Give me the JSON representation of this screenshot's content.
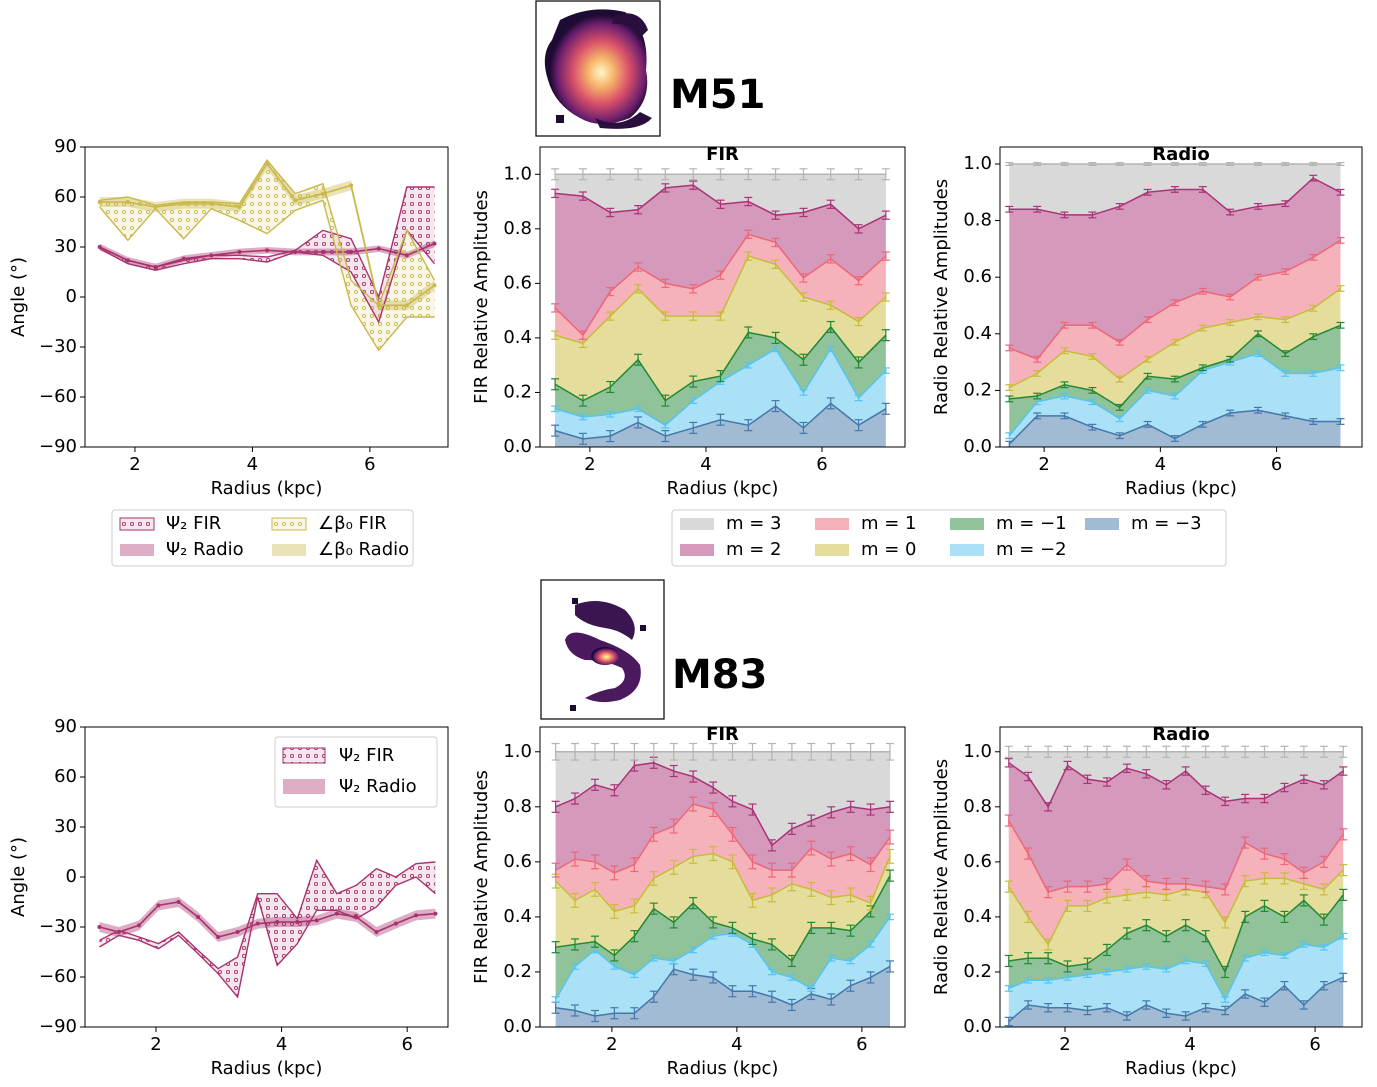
{
  "galaxies": [
    "M51",
    "M83"
  ],
  "chart_data": [
    {
      "type": "line",
      "xlabel": "Radius (kpc)",
      "ylabel": "Angle (°)",
      "legend": "below",
      "xlim": [
        1.15,
        7.33
      ],
      "ylim": [
        -90,
        90
      ],
      "xticks": [
        2,
        4,
        6
      ],
      "yticks": [
        {
          "value": -90,
          "label": "−90"
        },
        {
          "value": -60,
          "label": "−60"
        },
        {
          "value": -30,
          "label": "−30"
        },
        0,
        30,
        60,
        90
      ],
      "x": [
        1.4,
        1.88,
        2.35,
        2.83,
        3.3,
        3.78,
        4.25,
        4.73,
        5.2,
        5.68,
        6.15,
        6.63,
        7.1
      ],
      "series": [
        {
          "name": "Ψ₂ FIR",
          "color": "#a8326e",
          "lower": [
            29,
            20,
            16,
            20,
            23,
            23,
            21,
            27,
            25,
            15,
            -15,
            40,
            20
          ],
          "upper": [
            30,
            22,
            18,
            22,
            25,
            25,
            24,
            28,
            40,
            35,
            0,
            66,
            66
          ]
        },
        {
          "name": "Ψ₂ Radio",
          "color": "#a8326e",
          "values": [
            30,
            22,
            18,
            23,
            25,
            27,
            28,
            27,
            27,
            27,
            29,
            25,
            32
          ],
          "error": 2
        },
        {
          "name": "∠β₀ FIR",
          "color": "#c9b84a",
          "lower": [
            54,
            34,
            53,
            35,
            53,
            46,
            38,
            52,
            58,
            -5,
            -32,
            -12,
            -12
          ],
          "upper": [
            58,
            60,
            55,
            57,
            57,
            56,
            82,
            62,
            68,
            10,
            -5,
            40,
            10
          ]
        },
        {
          "name": "∠β₀ Radio",
          "color": "#c9b84a",
          "values": [
            57,
            57,
            54,
            56,
            56,
            54,
            80,
            58,
            62,
            67,
            -5,
            -5,
            7
          ],
          "error": 3
        }
      ]
    },
    {
      "type": "stacked_area",
      "title": "FIR",
      "xlabel": "Radius (kpc)",
      "ylabel": "FIR Relative Amplitudes",
      "legend": "below",
      "xlim": [
        1.14,
        7.43
      ],
      "ylim": [
        0,
        1.1
      ],
      "xticks": [
        2,
        4,
        6
      ],
      "yticks": [
        {
          "value": 0,
          "label": "0.0"
        },
        0.2,
        0.4,
        0.6,
        0.8,
        {
          "value": 1,
          "label": "1.0"
        }
      ],
      "x": [
        1.4,
        1.88,
        2.35,
        2.83,
        3.3,
        3.78,
        4.25,
        4.73,
        5.2,
        5.68,
        6.15,
        6.63,
        7.1
      ],
      "series": [
        {
          "name": "m = −3",
          "color": "#4477aa",
          "error": 0.02,
          "values": [
            0.06,
            0.03,
            0.04,
            0.09,
            0.04,
            0.07,
            0.1,
            0.08,
            0.15,
            0.07,
            0.16,
            0.08,
            0.14
          ]
        },
        {
          "name": "m = −2",
          "color": "#55c4ee",
          "error": 0.01,
          "values": [
            0.08,
            0.08,
            0.08,
            0.05,
            0.04,
            0.1,
            0.14,
            0.22,
            0.21,
            0.13,
            0.2,
            0.1,
            0.14
          ]
        },
        {
          "name": "m = −1",
          "color": "#228833",
          "error": 0.02,
          "values": [
            0.09,
            0.06,
            0.1,
            0.18,
            0.09,
            0.07,
            0.02,
            0.12,
            0.04,
            0.12,
            0.08,
            0.13,
            0.13
          ]
        },
        {
          "name": "m = 0",
          "color": "#c9bb3a",
          "error": 0.015,
          "values": [
            0.18,
            0.21,
            0.26,
            0.26,
            0.31,
            0.24,
            0.22,
            0.28,
            0.27,
            0.23,
            0.08,
            0.15,
            0.14
          ]
        },
        {
          "name": "m = 1",
          "color": "#ee6677",
          "error": 0.015,
          "values": [
            0.1,
            0.03,
            0.09,
            0.08,
            0.12,
            0.1,
            0.15,
            0.08,
            0.08,
            0.07,
            0.17,
            0.15,
            0.15
          ]
        },
        {
          "name": "m = 2",
          "color": "#aa3377",
          "error": 0.015,
          "values": [
            0.42,
            0.51,
            0.29,
            0.21,
            0.35,
            0.38,
            0.26,
            0.12,
            0.1,
            0.24,
            0.2,
            0.19,
            0.15
          ]
        },
        {
          "name": "m = 3",
          "color": "#b4b4b4",
          "error": 0.02,
          "values": [
            0.07,
            0.08,
            0.14,
            0.13,
            0.05,
            0.04,
            0.11,
            0.1,
            0.15,
            0.14,
            0.11,
            0.2,
            0.15
          ]
        }
      ]
    },
    {
      "type": "stacked_area",
      "title": "Radio",
      "xlabel": "Radius (kpc)",
      "ylabel": "Radio Relative Amplitudes",
      "xlim": [
        1.24,
        7.47
      ],
      "ylim": [
        0,
        1.06
      ],
      "xticks": [
        2,
        4,
        6
      ],
      "yticks": [
        {
          "value": 0,
          "label": "0.0"
        },
        0.2,
        0.4,
        0.6,
        0.8,
        {
          "value": 1,
          "label": "1.0"
        }
      ],
      "x": [
        1.4,
        1.88,
        2.35,
        2.83,
        3.3,
        3.78,
        4.25,
        4.73,
        5.2,
        5.68,
        6.15,
        6.63,
        7.1
      ],
      "series": [
        {
          "name": "m = −3",
          "color": "#4477aa",
          "error": 0.01,
          "values": [
            0.01,
            0.11,
            0.11,
            0.07,
            0.04,
            0.08,
            0.03,
            0.08,
            0.12,
            0.13,
            0.11,
            0.09,
            0.09
          ]
        },
        {
          "name": "m = −2",
          "color": "#55c4ee",
          "error": 0.01,
          "values": [
            0.03,
            0.05,
            0.07,
            0.09,
            0.06,
            0.12,
            0.15,
            0.19,
            0.18,
            0.2,
            0.15,
            0.17,
            0.19
          ]
        },
        {
          "name": "m = −1",
          "color": "#228833",
          "error": 0.01,
          "values": [
            0.13,
            0.02,
            0.04,
            0.04,
            0.04,
            0.05,
            0.06,
            0.01,
            0.01,
            0.07,
            0.07,
            0.13,
            0.15
          ]
        },
        {
          "name": "m = 0",
          "color": "#c9bb3a",
          "error": 0.01,
          "values": [
            0.04,
            0.08,
            0.12,
            0.12,
            0.1,
            0.06,
            0.13,
            0.14,
            0.13,
            0.06,
            0.12,
            0.1,
            0.13
          ]
        },
        {
          "name": "m = 1",
          "color": "#ee6677",
          "error": 0.01,
          "values": [
            0.14,
            0.05,
            0.09,
            0.11,
            0.13,
            0.14,
            0.14,
            0.13,
            0.09,
            0.14,
            0.17,
            0.18,
            0.17
          ]
        },
        {
          "name": "m = 2",
          "color": "#aa3377",
          "error": 0.01,
          "values": [
            0.49,
            0.53,
            0.39,
            0.39,
            0.48,
            0.45,
            0.4,
            0.36,
            0.3,
            0.25,
            0.24,
            0.28,
            0.17
          ]
        },
        {
          "name": "m = 3",
          "color": "#b4b4b4",
          "error": 0.005,
          "values": [
            0.16,
            0.16,
            0.18,
            0.18,
            0.15,
            0.1,
            0.09,
            0.09,
            0.17,
            0.15,
            0.14,
            0.05,
            0.1
          ]
        }
      ]
    },
    {
      "type": "line",
      "xlabel": "Radius (kpc)",
      "ylabel": "Angle (°)",
      "legend": "upper right",
      "xlim": [
        0.87,
        6.65
      ],
      "ylim": [
        -90,
        90
      ],
      "xticks": [
        2,
        4,
        6
      ],
      "yticks": [
        {
          "value": -90,
          "label": "−90"
        },
        {
          "value": -60,
          "label": "−60"
        },
        {
          "value": -30,
          "label": "−30"
        },
        0,
        30,
        60,
        90
      ],
      "x": [
        1.1,
        1.41,
        1.73,
        2.04,
        2.36,
        2.67,
        2.99,
        3.3,
        3.62,
        3.93,
        4.25,
        4.56,
        4.88,
        5.19,
        5.51,
        5.82,
        6.14,
        6.45
      ],
      "series": [
        {
          "name": "Ψ₂ FIR",
          "color": "#a8326e",
          "lower": [
            -42,
            -35,
            -38,
            -43,
            -35,
            -46,
            -58,
            -72,
            -12,
            -53,
            -40,
            -20,
            -20,
            -25,
            -18,
            -5,
            0,
            -10
          ],
          "upper": [
            -38,
            -32,
            -36,
            -40,
            -33,
            -44,
            -55,
            -48,
            -10,
            -10,
            -25,
            10,
            -10,
            -5,
            5,
            0,
            8,
            9
          ]
        },
        {
          "name": "Ψ₂ Radio",
          "color": "#a8326e",
          "values": [
            -30,
            -33,
            -29,
            -17,
            -15,
            -24,
            -36,
            -33,
            -28,
            -27,
            -27,
            -26,
            -22,
            -24,
            -33,
            -28,
            -23,
            -22
          ],
          "error": 3
        }
      ]
    },
    {
      "type": "stacked_area",
      "title": "FIR",
      "xlabel": "Radius (kpc)",
      "ylabel": "FIR Relative Amplitudes",
      "xlim": [
        0.85,
        6.69
      ],
      "ylim": [
        0,
        1.09
      ],
      "xticks": [
        2,
        4,
        6
      ],
      "yticks": [
        {
          "value": 0,
          "label": "0.0"
        },
        0.2,
        0.4,
        0.6,
        0.8,
        {
          "value": 1,
          "label": "1.0"
        }
      ],
      "x": [
        1.1,
        1.41,
        1.73,
        2.04,
        2.36,
        2.67,
        2.99,
        3.3,
        3.62,
        3.93,
        4.25,
        4.56,
        4.88,
        5.19,
        5.51,
        5.82,
        6.14,
        6.45
      ],
      "series": [
        {
          "name": "m = −3",
          "color": "#4477aa",
          "error": 0.02,
          "values": [
            0.07,
            0.06,
            0.04,
            0.05,
            0.05,
            0.11,
            0.21,
            0.19,
            0.18,
            0.13,
            0.13,
            0.11,
            0.08,
            0.12,
            0.1,
            0.15,
            0.18,
            0.22
          ]
        },
        {
          "name": "m = −2",
          "color": "#55c4ee",
          "error": 0.01,
          "values": [
            0.03,
            0.16,
            0.24,
            0.17,
            0.14,
            0.14,
            0.03,
            0.09,
            0.15,
            0.21,
            0.17,
            0.09,
            0.1,
            0.02,
            0.15,
            0.09,
            0.12,
            0.18
          ]
        },
        {
          "name": "m = −1",
          "color": "#228833",
          "error": 0.02,
          "values": [
            0.19,
            0.08,
            0.03,
            0.04,
            0.14,
            0.18,
            0.14,
            0.17,
            0.05,
            0.02,
            0.02,
            0.1,
            0.06,
            0.22,
            0.11,
            0.11,
            0.12,
            0.15
          ]
        },
        {
          "name": "m = 0",
          "color": "#c9bb3a",
          "error": 0.025,
          "values": [
            0.24,
            0.16,
            0.19,
            0.16,
            0.11,
            0.11,
            0.2,
            0.17,
            0.25,
            0.24,
            0.14,
            0.18,
            0.28,
            0.14,
            0.11,
            0.13,
            0.03,
            0.07
          ]
        },
        {
          "name": "m = 1",
          "color": "#ee6677",
          "error": 0.025,
          "values": [
            0.04,
            0.15,
            0.1,
            0.14,
            0.15,
            0.16,
            0.15,
            0.19,
            0.16,
            0.1,
            0.14,
            0.09,
            0.05,
            0.15,
            0.14,
            0.15,
            0.14,
            0.07
          ]
        },
        {
          "name": "m = 2",
          "color": "#aa3377",
          "error": 0.02,
          "values": [
            0.23,
            0.22,
            0.28,
            0.3,
            0.36,
            0.26,
            0.2,
            0.1,
            0.08,
            0.12,
            0.19,
            0.09,
            0.15,
            0.1,
            0.17,
            0.17,
            0.2,
            0.11
          ]
        },
        {
          "name": "m = 3",
          "color": "#b4b4b4",
          "error": 0.03,
          "values": [
            0.2,
            0.17,
            0.12,
            0.14,
            0.05,
            0.04,
            0.07,
            0.09,
            0.13,
            0.18,
            0.21,
            0.34,
            0.28,
            0.25,
            0.22,
            0.2,
            0.21,
            0.2
          ]
        }
      ]
    },
    {
      "type": "stacked_area",
      "title": "Radio",
      "xlabel": "Radius (kpc)",
      "ylabel": "Radio Relative Amplitudes",
      "xlim": [
        0.96,
        6.75
      ],
      "ylim": [
        0,
        1.09
      ],
      "xticks": [
        2,
        4,
        6
      ],
      "yticks": [
        {
          "value": 0,
          "label": "0.0"
        },
        0.2,
        0.4,
        0.6,
        0.8,
        {
          "value": 1,
          "label": "1.0"
        }
      ],
      "x": [
        1.1,
        1.41,
        1.73,
        2.04,
        2.36,
        2.67,
        2.99,
        3.3,
        3.62,
        3.93,
        4.25,
        4.56,
        4.88,
        5.19,
        5.51,
        5.82,
        6.14,
        6.45
      ],
      "series": [
        {
          "name": "m = −3",
          "color": "#4477aa",
          "error": 0.015,
          "values": [
            0.02,
            0.08,
            0.07,
            0.07,
            0.06,
            0.07,
            0.04,
            0.08,
            0.05,
            0.04,
            0.07,
            0.06,
            0.12,
            0.09,
            0.15,
            0.08,
            0.15,
            0.18
          ]
        },
        {
          "name": "m = −2",
          "color": "#55c4ee",
          "error": 0.01,
          "values": [
            0.12,
            0.09,
            0.1,
            0.11,
            0.13,
            0.13,
            0.17,
            0.14,
            0.16,
            0.2,
            0.16,
            0.04,
            0.13,
            0.18,
            0.11,
            0.22,
            0.14,
            0.15
          ]
        },
        {
          "name": "m = −1",
          "color": "#228833",
          "error": 0.02,
          "values": [
            0.1,
            0.08,
            0.08,
            0.04,
            0.04,
            0.08,
            0.13,
            0.15,
            0.12,
            0.13,
            0.1,
            0.1,
            0.15,
            0.17,
            0.14,
            0.16,
            0.1,
            0.15
          ]
        },
        {
          "name": "m = 0",
          "color": "#c9bb3a",
          "error": 0.02,
          "values": [
            0.27,
            0.15,
            0.05,
            0.22,
            0.21,
            0.19,
            0.14,
            0.12,
            0.15,
            0.13,
            0.16,
            0.18,
            0.13,
            0.1,
            0.14,
            0.06,
            0.11,
            0.09
          ]
        },
        {
          "name": "m = 1",
          "color": "#ee6677",
          "error": 0.02,
          "values": [
            0.24,
            0.23,
            0.19,
            0.07,
            0.07,
            0.05,
            0.11,
            0.04,
            0.04,
            0.02,
            0.02,
            0.12,
            0.14,
            0.09,
            0.07,
            0.04,
            0.1,
            0.13
          ]
        },
        {
          "name": "m = 2",
          "color": "#aa3377",
          "error": 0.015,
          "values": [
            0.21,
            0.28,
            0.31,
            0.44,
            0.39,
            0.37,
            0.35,
            0.39,
            0.36,
            0.41,
            0.35,
            0.32,
            0.16,
            0.2,
            0.26,
            0.34,
            0.28,
            0.23
          ]
        },
        {
          "name": "m = 3",
          "color": "#b4b4b4",
          "error": 0.02,
          "values": [
            0.04,
            0.09,
            0.2,
            0.05,
            0.1,
            0.11,
            0.06,
            0.08,
            0.12,
            0.07,
            0.14,
            0.18,
            0.17,
            0.17,
            0.13,
            0.1,
            0.12,
            0.07
          ]
        }
      ]
    }
  ]
}
